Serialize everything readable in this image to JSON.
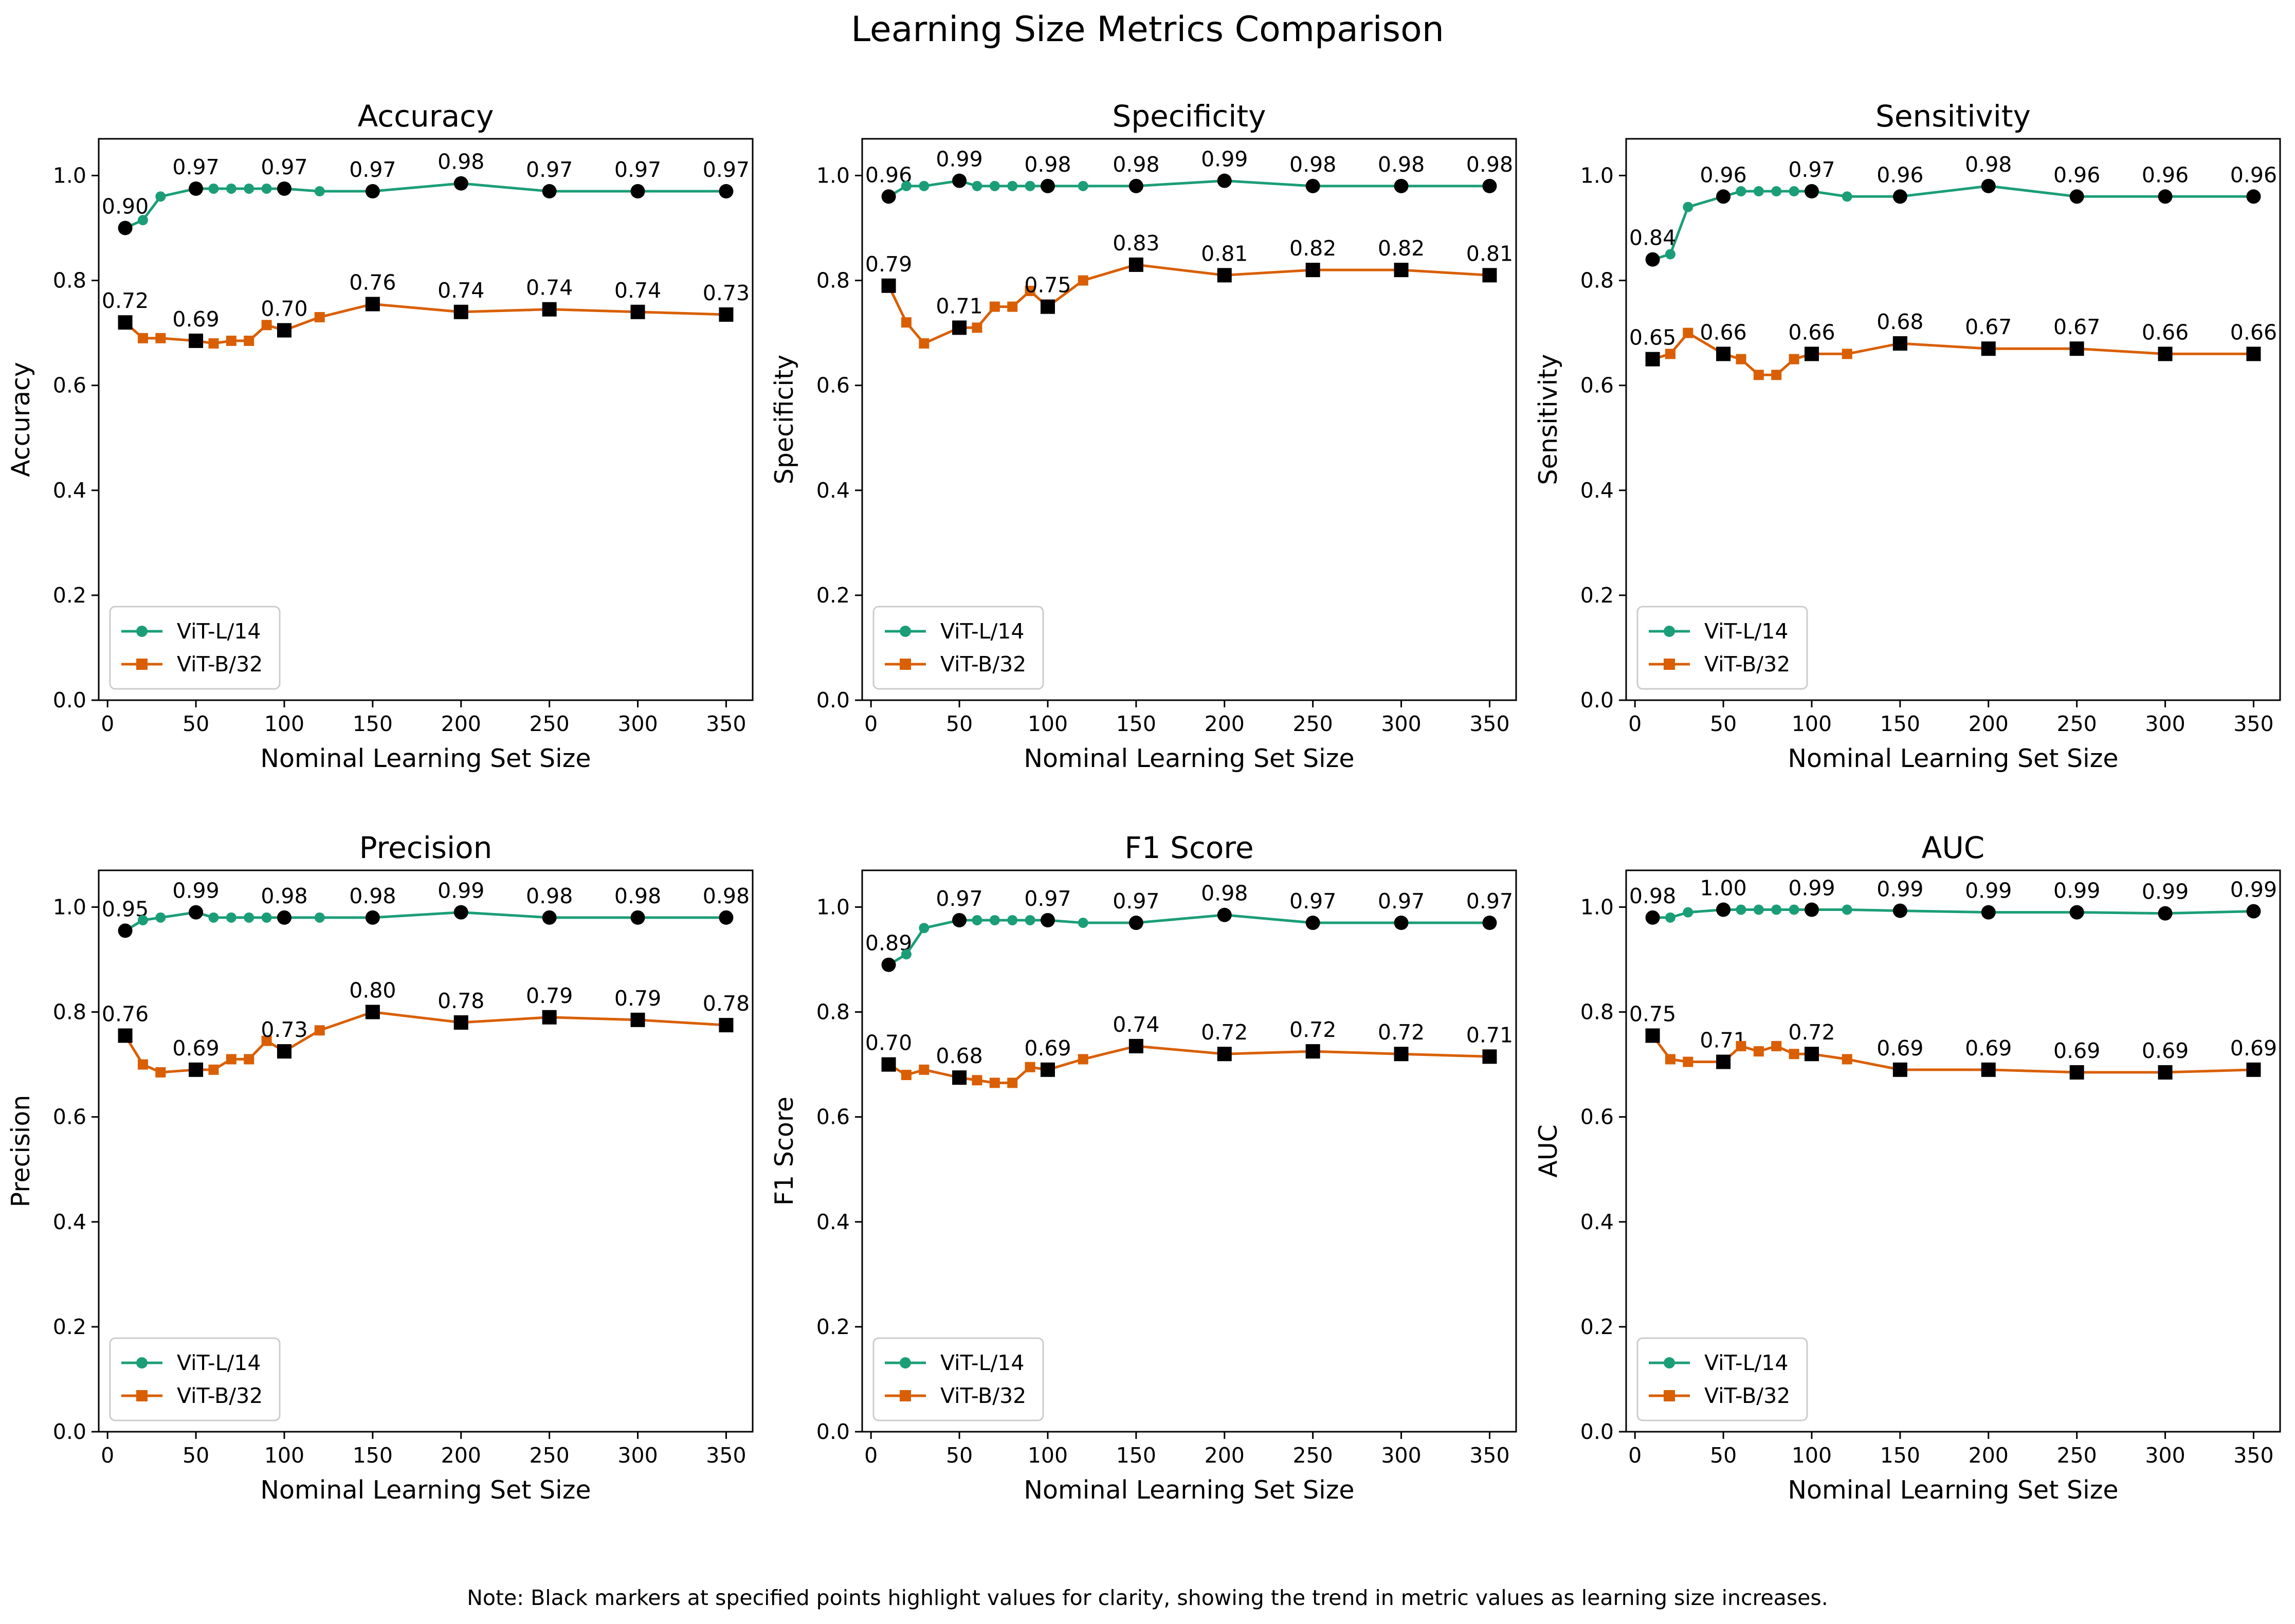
{
  "figure": {
    "title": "Learning Size Metrics Comparison",
    "note": "Note: Black markers at specified points highlight values for clarity, showing the trend in metric values as learning size increases."
  },
  "colors": {
    "vit_l14": "#1b9e77",
    "vit_b32": "#d95f02",
    "highlight": "#000000"
  },
  "chart_data": [
    {
      "type": "line",
      "title": "Accuracy",
      "xlabel": "Nominal Learning Set Size",
      "ylabel": "Accuracy",
      "xlim": [
        -5,
        365
      ],
      "ylim": [
        0,
        1.07
      ],
      "xticks": [
        0,
        50,
        100,
        150,
        200,
        250,
        300,
        350
      ],
      "yticks": [
        0.0,
        0.2,
        0.4,
        0.6,
        0.8,
        1.0
      ],
      "legend": "lower-left",
      "highlight_x": [
        10,
        50,
        100,
        150,
        200,
        250,
        300,
        350
      ],
      "x": [
        10,
        20,
        30,
        50,
        60,
        70,
        80,
        90,
        100,
        120,
        150,
        200,
        250,
        300,
        350
      ],
      "series": [
        {
          "name": "ViT-L/14",
          "marker": "circle",
          "values": [
            0.9,
            0.915,
            0.96,
            0.975,
            0.975,
            0.975,
            0.975,
            0.975,
            0.975,
            0.97,
            0.97,
            0.985,
            0.97,
            0.97,
            0.97
          ],
          "labels": [
            "0.90",
            "",
            "",
            "0.97",
            "",
            "",
            "",
            "",
            "0.97",
            "",
            "0.97",
            "0.98",
            "0.97",
            "0.97",
            "0.97"
          ]
        },
        {
          "name": "ViT-B/32",
          "marker": "square",
          "values": [
            0.72,
            0.69,
            0.69,
            0.685,
            0.68,
            0.685,
            0.685,
            0.715,
            0.705,
            0.73,
            0.755,
            0.74,
            0.745,
            0.74,
            0.735
          ],
          "labels": [
            "0.72",
            "",
            "",
            "0.69",
            "",
            "",
            "",
            "",
            "0.70",
            "",
            "0.76",
            "0.74",
            "0.74",
            "0.74",
            "0.73"
          ]
        }
      ]
    },
    {
      "type": "line",
      "title": "Specificity",
      "xlabel": "Nominal Learning Set Size",
      "ylabel": "Specificity",
      "xlim": [
        -5,
        365
      ],
      "ylim": [
        0,
        1.07
      ],
      "xticks": [
        0,
        50,
        100,
        150,
        200,
        250,
        300,
        350
      ],
      "yticks": [
        0.0,
        0.2,
        0.4,
        0.6,
        0.8,
        1.0
      ],
      "legend": "lower-left",
      "highlight_x": [
        10,
        50,
        100,
        150,
        200,
        250,
        300,
        350
      ],
      "x": [
        10,
        20,
        30,
        50,
        60,
        70,
        80,
        90,
        100,
        120,
        150,
        200,
        250,
        300,
        350
      ],
      "series": [
        {
          "name": "ViT-L/14",
          "marker": "circle",
          "values": [
            0.96,
            0.98,
            0.98,
            0.99,
            0.98,
            0.98,
            0.98,
            0.98,
            0.98,
            0.98,
            0.98,
            0.99,
            0.98,
            0.98,
            0.98
          ],
          "labels": [
            "0.96",
            "",
            "",
            "0.99",
            "",
            "",
            "",
            "",
            "0.98",
            "",
            "0.98",
            "0.99",
            "0.98",
            "0.98",
            "0.98"
          ]
        },
        {
          "name": "ViT-B/32",
          "marker": "square",
          "values": [
            0.79,
            0.72,
            0.68,
            0.71,
            0.71,
            0.75,
            0.75,
            0.78,
            0.75,
            0.8,
            0.83,
            0.81,
            0.82,
            0.82,
            0.81
          ],
          "labels": [
            "0.79",
            "",
            "",
            "0.71",
            "",
            "",
            "",
            "",
            "0.75",
            "",
            "0.83",
            "0.81",
            "0.82",
            "0.82",
            "0.81"
          ]
        }
      ]
    },
    {
      "type": "line",
      "title": "Sensitivity",
      "xlabel": "Nominal Learning Set Size",
      "ylabel": "Sensitivity",
      "xlim": [
        -5,
        365
      ],
      "ylim": [
        0,
        1.07
      ],
      "xticks": [
        0,
        50,
        100,
        150,
        200,
        250,
        300,
        350
      ],
      "yticks": [
        0.0,
        0.2,
        0.4,
        0.6,
        0.8,
        1.0
      ],
      "legend": "lower-left",
      "highlight_x": [
        10,
        50,
        100,
        150,
        200,
        250,
        300,
        350
      ],
      "x": [
        10,
        20,
        30,
        50,
        60,
        70,
        80,
        90,
        100,
        120,
        150,
        200,
        250,
        300,
        350
      ],
      "series": [
        {
          "name": "ViT-L/14",
          "marker": "circle",
          "values": [
            0.84,
            0.85,
            0.94,
            0.96,
            0.97,
            0.97,
            0.97,
            0.97,
            0.97,
            0.96,
            0.96,
            0.98,
            0.96,
            0.96,
            0.96
          ],
          "labels": [
            "0.84",
            "",
            "",
            "0.96",
            "",
            "",
            "",
            "",
            "0.97",
            "",
            "0.96",
            "0.98",
            "0.96",
            "0.96",
            "0.96"
          ]
        },
        {
          "name": "ViT-B/32",
          "marker": "square",
          "values": [
            0.65,
            0.66,
            0.7,
            0.66,
            0.65,
            0.62,
            0.62,
            0.65,
            0.66,
            0.66,
            0.68,
            0.67,
            0.67,
            0.66,
            0.66
          ],
          "labels": [
            "0.65",
            "",
            "",
            "0.66",
            "",
            "",
            "",
            "",
            "0.66",
            "",
            "0.68",
            "0.67",
            "0.67",
            "0.66",
            "0.66"
          ]
        }
      ]
    },
    {
      "type": "line",
      "title": "Precision",
      "xlabel": "Nominal Learning Set Size",
      "ylabel": "Precision",
      "xlim": [
        -5,
        365
      ],
      "ylim": [
        0,
        1.07
      ],
      "xticks": [
        0,
        50,
        100,
        150,
        200,
        250,
        300,
        350
      ],
      "yticks": [
        0.0,
        0.2,
        0.4,
        0.6,
        0.8,
        1.0
      ],
      "legend": "lower-left",
      "highlight_x": [
        10,
        50,
        100,
        150,
        200,
        250,
        300,
        350
      ],
      "x": [
        10,
        20,
        30,
        50,
        60,
        70,
        80,
        90,
        100,
        120,
        150,
        200,
        250,
        300,
        350
      ],
      "series": [
        {
          "name": "ViT-L/14",
          "marker": "circle",
          "values": [
            0.955,
            0.975,
            0.98,
            0.99,
            0.98,
            0.98,
            0.98,
            0.98,
            0.98,
            0.98,
            0.98,
            0.99,
            0.98,
            0.98,
            0.98
          ],
          "labels": [
            "0.95",
            "",
            "",
            "0.99",
            "",
            "",
            "",
            "",
            "0.98",
            "",
            "0.98",
            "0.99",
            "0.98",
            "0.98",
            "0.98"
          ]
        },
        {
          "name": "ViT-B/32",
          "marker": "square",
          "values": [
            0.755,
            0.7,
            0.685,
            0.69,
            0.69,
            0.71,
            0.71,
            0.745,
            0.725,
            0.765,
            0.8,
            0.78,
            0.79,
            0.785,
            0.775
          ],
          "labels": [
            "0.76",
            "",
            "",
            "0.69",
            "",
            "",
            "",
            "",
            "0.73",
            "",
            "0.80",
            "0.78",
            "0.79",
            "0.79",
            "0.78"
          ]
        }
      ]
    },
    {
      "type": "line",
      "title": "F1 Score",
      "xlabel": "Nominal Learning Set Size",
      "ylabel": "F1 Score",
      "xlim": [
        -5,
        365
      ],
      "ylim": [
        0,
        1.07
      ],
      "xticks": [
        0,
        50,
        100,
        150,
        200,
        250,
        300,
        350
      ],
      "yticks": [
        0.0,
        0.2,
        0.4,
        0.6,
        0.8,
        1.0
      ],
      "legend": "lower-left",
      "highlight_x": [
        10,
        50,
        100,
        150,
        200,
        250,
        300,
        350
      ],
      "x": [
        10,
        20,
        30,
        50,
        60,
        70,
        80,
        90,
        100,
        120,
        150,
        200,
        250,
        300,
        350
      ],
      "series": [
        {
          "name": "ViT-L/14",
          "marker": "circle",
          "values": [
            0.89,
            0.91,
            0.96,
            0.975,
            0.975,
            0.975,
            0.975,
            0.975,
            0.975,
            0.97,
            0.97,
            0.985,
            0.97,
            0.97,
            0.97
          ],
          "labels": [
            "0.89",
            "",
            "",
            "0.97",
            "",
            "",
            "",
            "",
            "0.97",
            "",
            "0.97",
            "0.98",
            "0.97",
            "0.97",
            "0.97"
          ]
        },
        {
          "name": "ViT-B/32",
          "marker": "square",
          "values": [
            0.7,
            0.68,
            0.69,
            0.675,
            0.67,
            0.665,
            0.665,
            0.695,
            0.69,
            0.71,
            0.735,
            0.72,
            0.725,
            0.72,
            0.715
          ],
          "labels": [
            "0.70",
            "",
            "",
            "0.68",
            "",
            "",
            "",
            "",
            "0.69",
            "",
            "0.74",
            "0.72",
            "0.72",
            "0.72",
            "0.71"
          ]
        }
      ]
    },
    {
      "type": "line",
      "title": "AUC",
      "xlabel": "Nominal Learning Set Size",
      "ylabel": "AUC",
      "xlim": [
        -5,
        365
      ],
      "ylim": [
        0,
        1.07
      ],
      "xticks": [
        0,
        50,
        100,
        150,
        200,
        250,
        300,
        350
      ],
      "yticks": [
        0.0,
        0.2,
        0.4,
        0.6,
        0.8,
        1.0
      ],
      "legend": "lower-left",
      "highlight_x": [
        10,
        50,
        100,
        150,
        200,
        250,
        300,
        350
      ],
      "x": [
        10,
        20,
        30,
        50,
        60,
        70,
        80,
        90,
        100,
        120,
        150,
        200,
        250,
        300,
        350
      ],
      "series": [
        {
          "name": "ViT-L/14",
          "marker": "circle",
          "values": [
            0.98,
            0.98,
            0.99,
            0.995,
            0.995,
            0.995,
            0.995,
            0.995,
            0.995,
            0.995,
            0.993,
            0.99,
            0.99,
            0.988,
            0.992
          ],
          "labels": [
            "0.98",
            "",
            "",
            "1.00",
            "",
            "",
            "",
            "",
            "0.99",
            "",
            "0.99",
            "0.99",
            "0.99",
            "0.99",
            "0.99"
          ]
        },
        {
          "name": "ViT-B/32",
          "marker": "square",
          "values": [
            0.755,
            0.71,
            0.705,
            0.705,
            0.735,
            0.725,
            0.735,
            0.72,
            0.72,
            0.71,
            0.69,
            0.69,
            0.685,
            0.685,
            0.69
          ],
          "labels": [
            "0.75",
            "",
            "",
            "0.71",
            "",
            "",
            "",
            "",
            "0.72",
            "",
            "0.69",
            "0.69",
            "0.69",
            "0.69",
            "0.69"
          ]
        }
      ]
    }
  ]
}
